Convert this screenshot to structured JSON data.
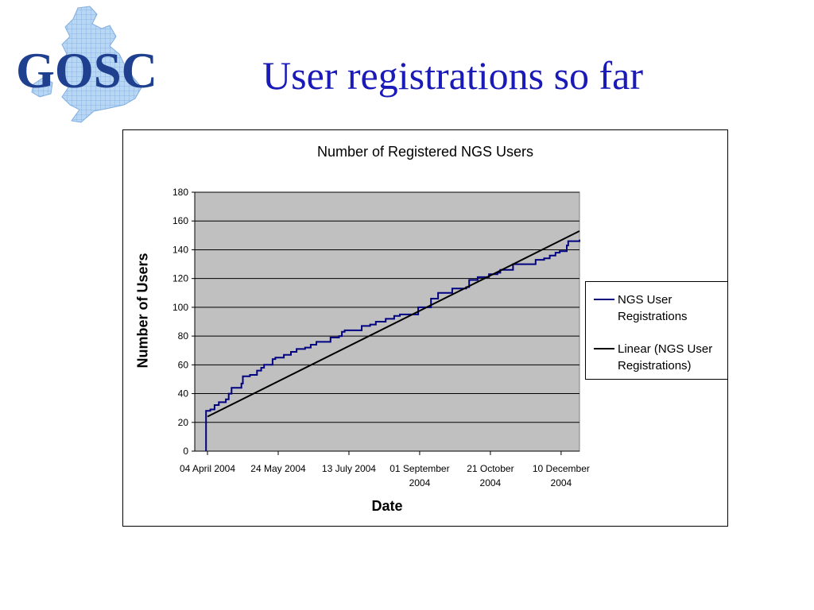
{
  "slide": {
    "logo_text": "GOSC",
    "title": "User registrations so far"
  },
  "colors": {
    "title": "#1a1ab8",
    "plot_background": "#c0c0c0",
    "series_line": "#000080",
    "trend_line": "#000000",
    "logo_text": "#1f3f8f",
    "logo_map": "#9ec3ec"
  },
  "icons": {
    "logo": "great-britain-map-logo"
  },
  "chart_data": {
    "type": "line",
    "title": "Number of Registered NGS Users",
    "xlabel": "Date",
    "ylabel": "Number of Users",
    "ylim": [
      0,
      180
    ],
    "xlim": [
      "2004-03-26",
      "2004-12-23"
    ],
    "yticks": [
      0,
      20,
      40,
      60,
      80,
      100,
      120,
      140,
      160,
      180
    ],
    "xticks": [
      {
        "date": "2004-04-04",
        "label": [
          "04 April 2004"
        ]
      },
      {
        "date": "2004-05-24",
        "label": [
          "24 May 2004"
        ]
      },
      {
        "date": "2004-07-13",
        "label": [
          "13 July 2004"
        ]
      },
      {
        "date": "2004-09-01",
        "label": [
          "01 September",
          "2004"
        ]
      },
      {
        "date": "2004-10-21",
        "label": [
          "21 October",
          "2004"
        ]
      },
      {
        "date": "2004-12-10",
        "label": [
          "10 December",
          "2004"
        ]
      }
    ],
    "grid": true,
    "legend_position": "right",
    "series": [
      {
        "name": "NGS User Registrations",
        "style": "step",
        "points": [
          [
            "2004-04-03",
            0
          ],
          [
            "2004-04-03",
            28
          ],
          [
            "2004-04-06",
            29
          ],
          [
            "2004-04-09",
            32
          ],
          [
            "2004-04-12",
            34
          ],
          [
            "2004-04-17",
            36
          ],
          [
            "2004-04-19",
            40
          ],
          [
            "2004-04-21",
            44
          ],
          [
            "2004-04-28",
            47
          ],
          [
            "2004-04-29",
            52
          ],
          [
            "2004-05-04",
            53
          ],
          [
            "2004-05-09",
            56
          ],
          [
            "2004-05-12",
            58
          ],
          [
            "2004-05-14",
            60
          ],
          [
            "2004-05-20",
            64
          ],
          [
            "2004-05-22",
            65
          ],
          [
            "2004-05-28",
            67
          ],
          [
            "2004-06-02",
            69
          ],
          [
            "2004-06-06",
            71
          ],
          [
            "2004-06-12",
            72
          ],
          [
            "2004-06-16",
            74
          ],
          [
            "2004-06-20",
            76
          ],
          [
            "2004-06-30",
            79
          ],
          [
            "2004-07-06",
            80
          ],
          [
            "2004-07-08",
            83
          ],
          [
            "2004-07-10",
            84
          ],
          [
            "2004-07-20",
            84
          ],
          [
            "2004-07-22",
            87
          ],
          [
            "2004-07-28",
            88
          ],
          [
            "2004-08-01",
            90
          ],
          [
            "2004-08-08",
            92
          ],
          [
            "2004-08-14",
            94
          ],
          [
            "2004-08-18",
            95
          ],
          [
            "2004-08-30",
            95
          ],
          [
            "2004-08-31",
            100
          ],
          [
            "2004-09-08",
            100
          ],
          [
            "2004-09-09",
            106
          ],
          [
            "2004-09-14",
            110
          ],
          [
            "2004-09-24",
            113
          ],
          [
            "2004-10-04",
            114
          ],
          [
            "2004-10-06",
            119
          ],
          [
            "2004-10-12",
            121
          ],
          [
            "2004-10-18",
            121
          ],
          [
            "2004-10-20",
            123
          ],
          [
            "2004-10-26",
            124
          ],
          [
            "2004-10-28",
            126
          ],
          [
            "2004-11-06",
            130
          ],
          [
            "2004-11-22",
            133
          ],
          [
            "2004-11-28",
            134
          ],
          [
            "2004-12-02",
            136
          ],
          [
            "2004-12-06",
            138
          ],
          [
            "2004-12-09",
            139
          ],
          [
            "2004-12-12",
            139
          ],
          [
            "2004-12-14",
            143
          ],
          [
            "2004-12-15",
            146
          ],
          [
            "2004-12-23",
            147
          ]
        ]
      },
      {
        "name": "Linear (NGS User Registrations)",
        "style": "line",
        "points": [
          [
            "2004-04-04",
            24
          ],
          [
            "2004-12-23",
            153
          ]
        ]
      }
    ]
  }
}
